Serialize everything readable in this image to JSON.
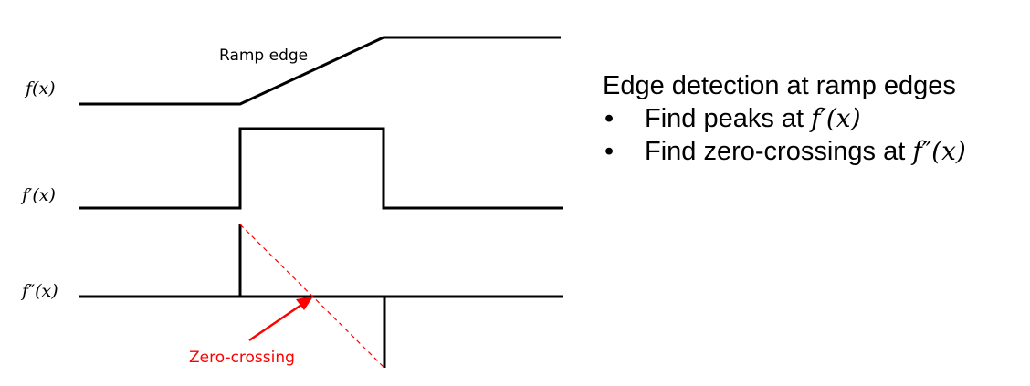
{
  "diagram": {
    "labels": {
      "f": "f(x)",
      "f_prime": "f′(x)",
      "f_double_prime": "f″(x)",
      "ramp_edge": "Ramp edge",
      "zero_crossing": "Zero-crossing"
    }
  },
  "text": {
    "title": "Edge detection at ramp edges",
    "bullets": [
      {
        "text": "Find peaks at ",
        "math": "f′(x)"
      },
      {
        "text": "Find zero-crossings at ",
        "math": "f″(x)"
      }
    ]
  },
  "colors": {
    "signal": "#000000",
    "annotation": "#ff0000"
  }
}
